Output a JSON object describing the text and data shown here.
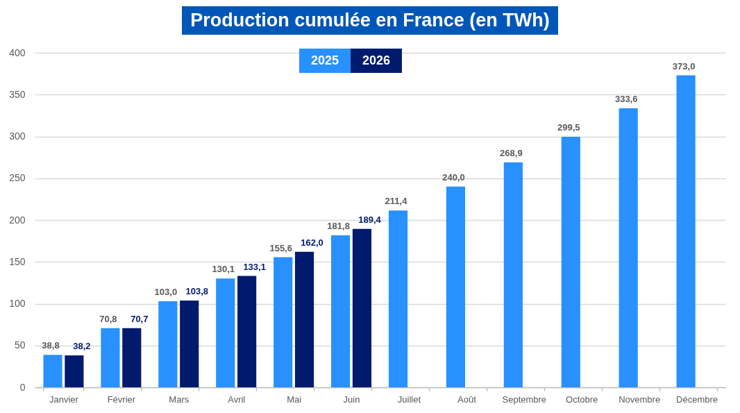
{
  "chart_data": {
    "type": "bar",
    "title": "Production cumulée en France (en TWh)",
    "categories": [
      "Janvier",
      "Février",
      "Mars",
      "Avril",
      "Mai",
      "Juin",
      "Juillet",
      "Août",
      "Septembre",
      "Octobre",
      "Novembre",
      "Décembre"
    ],
    "series": [
      {
        "name": "2025",
        "color": "#2891ff",
        "values": [
          38.8,
          70.8,
          103.0,
          130.1,
          155.6,
          181.8,
          211.4,
          240.0,
          268.9,
          299.5,
          333.6,
          373.0
        ],
        "value_labels": [
          "38,8",
          "70,8",
          "103,0",
          "130,1",
          "155,6",
          "181,8",
          "211,4",
          "240,0",
          "268,9",
          "299,5",
          "333,6",
          "373,0"
        ]
      },
      {
        "name": "2026",
        "color": "#001a6e",
        "values": [
          38.2,
          70.7,
          103.8,
          133.1,
          162.0,
          189.4,
          null,
          null,
          null,
          null,
          null,
          null
        ],
        "value_labels": [
          "38,2",
          "70,7",
          "103,8",
          "133,1",
          "162,0",
          "189,4",
          null,
          null,
          null,
          null,
          null,
          null
        ]
      }
    ],
    "ylim": [
      0,
      400
    ],
    "yticks": [
      0,
      50,
      100,
      150,
      200,
      250,
      300,
      350,
      400
    ],
    "grid": "y",
    "legend": "top"
  }
}
